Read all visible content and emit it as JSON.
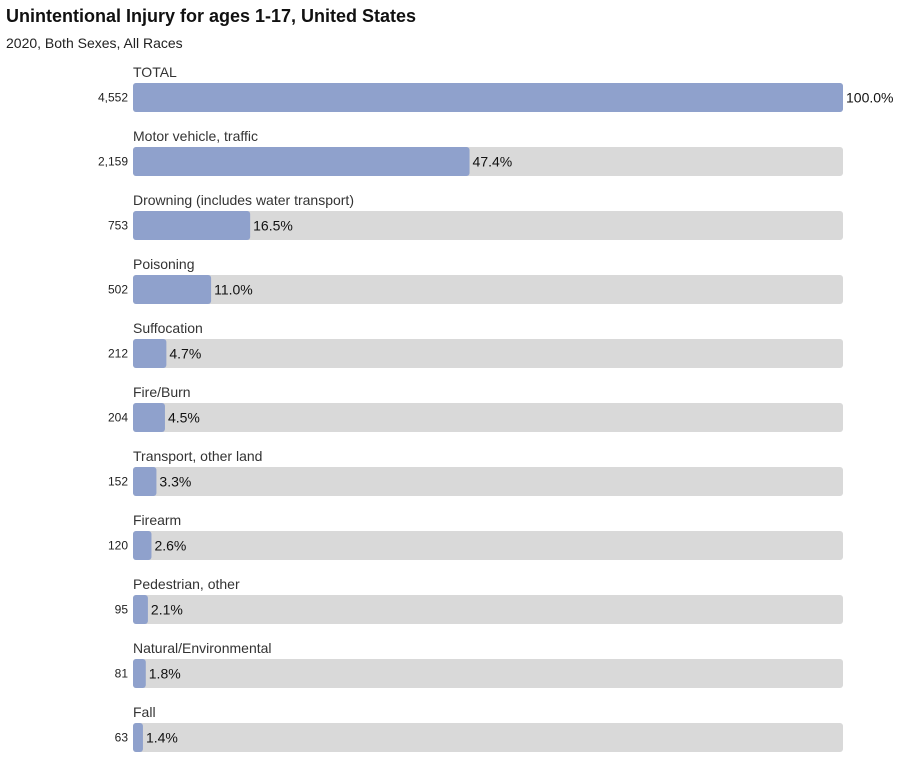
{
  "chart_data": {
    "type": "bar",
    "orientation": "horizontal",
    "title": "Unintentional Injury for ages 1-17, United States",
    "subtitle": "2020, Both Sexes, All Races",
    "categories": [
      "TOTAL",
      "Motor vehicle, traffic",
      "Drowning (includes water transport)",
      "Poisoning",
      "Suffocation",
      "Fire/Burn",
      "Transport, other land",
      "Firearm",
      "Pedestrian, other",
      "Natural/Environmental",
      "Fall"
    ],
    "counts": [
      "4,552",
      "2,159",
      "753",
      "502",
      "212",
      "204",
      "152",
      "120",
      "95",
      "81",
      "63"
    ],
    "values": [
      100.0,
      47.4,
      16.5,
      11.0,
      4.7,
      4.5,
      3.3,
      2.6,
      2.1,
      1.8,
      1.4
    ],
    "value_labels": [
      "100.0%",
      "47.4%",
      "16.5%",
      "11.0%",
      "4.7%",
      "4.5%",
      "3.3%",
      "2.6%",
      "2.1%",
      "1.8%",
      "1.4%"
    ],
    "xlim": [
      0,
      100
    ],
    "colors": {
      "bar": "#8fa1cc",
      "track": "#d9d9d9"
    }
  }
}
